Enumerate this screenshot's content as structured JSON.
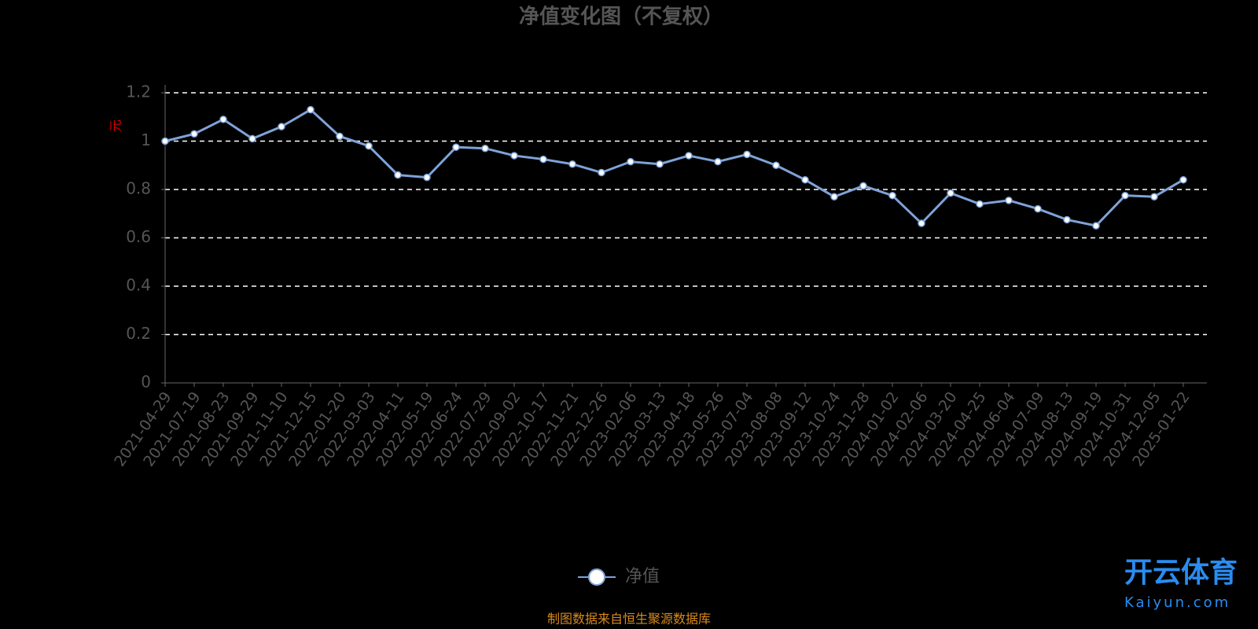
{
  "chart_data": {
    "type": "line",
    "title": "净值变化图（不复权）",
    "y_label": "元",
    "categories": [
      "2021-04-29",
      "2021-07-19",
      "2021-08-23",
      "2021-09-29",
      "2021-11-10",
      "2021-12-15",
      "2022-01-20",
      "2022-03-03",
      "2022-04-11",
      "2022-05-19",
      "2022-06-24",
      "2022-07-29",
      "2022-09-02",
      "2022-10-17",
      "2022-11-21",
      "2022-12-26",
      "2023-02-06",
      "2023-03-13",
      "2023-04-18",
      "2023-05-26",
      "2023-07-04",
      "2023-08-08",
      "2023-09-12",
      "2023-10-24",
      "2023-11-28",
      "2024-01-02",
      "2024-02-06",
      "2024-03-20",
      "2024-04-25",
      "2024-06-04",
      "2024-07-09",
      "2024-08-13",
      "2024-09-19",
      "2024-10-31",
      "2024-12-05",
      "2025-01-22"
    ],
    "series": [
      {
        "name": "净值",
        "color": "#7ea3d8",
        "values": [
          1.0,
          1.03,
          1.09,
          1.01,
          1.06,
          1.13,
          1.02,
          0.98,
          0.86,
          0.85,
          0.975,
          0.97,
          0.94,
          0.925,
          0.905,
          0.87,
          0.915,
          0.905,
          0.94,
          0.915,
          0.945,
          0.9,
          0.84,
          0.77,
          0.815,
          0.775,
          0.66,
          0.785,
          0.74,
          0.755,
          0.72,
          0.675,
          0.65,
          0.775,
          0.77,
          0.84
        ]
      }
    ],
    "ylim": [
      0,
      1.2
    ],
    "yticks": [
      0,
      0.2,
      0.4,
      0.6,
      0.8,
      1,
      1.2
    ],
    "grid": true,
    "source": "制图数据来自恒生聚源数据库",
    "watermark": {
      "brand": "开云体育",
      "site": "Kaiyun.com"
    }
  }
}
